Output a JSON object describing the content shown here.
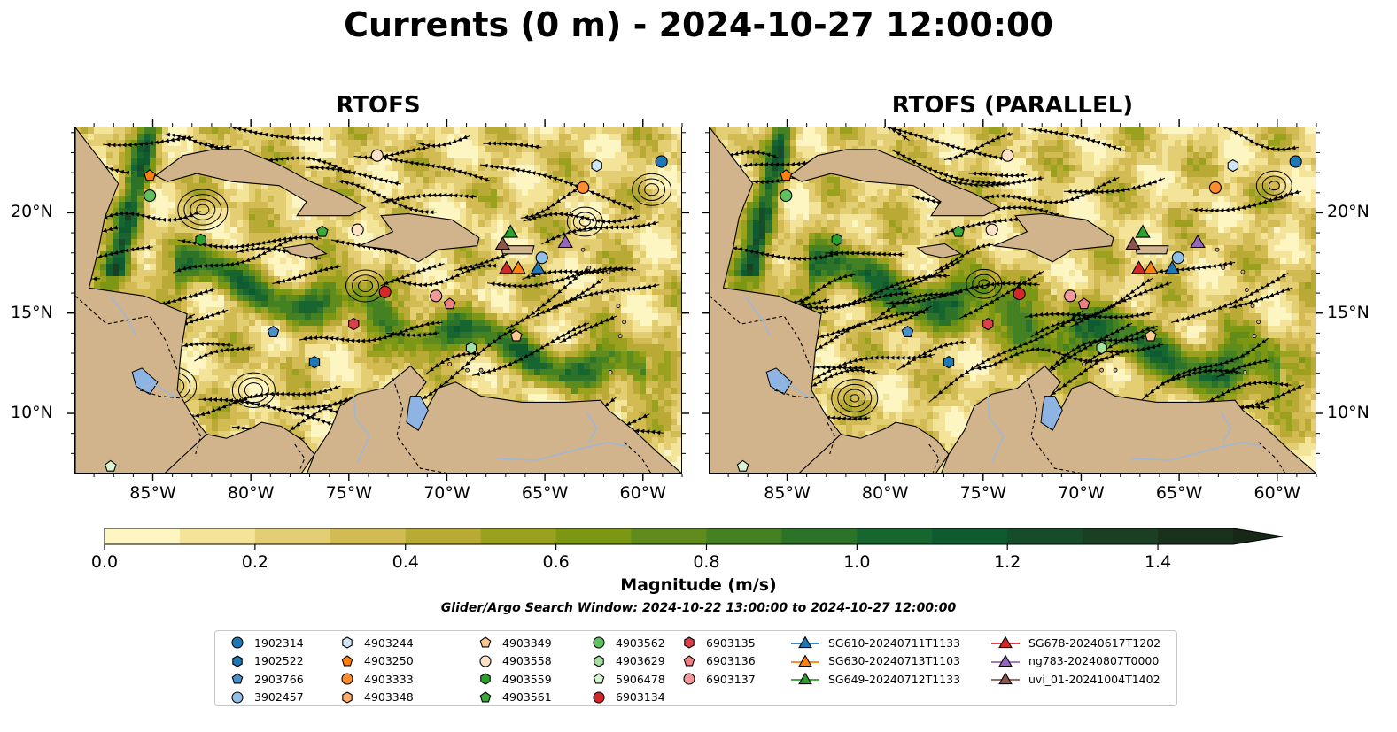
{
  "title": "Currents (0 m) - 2024-10-27 12:00:00",
  "panels": [
    {
      "title": "RTOFS",
      "variant": "a"
    },
    {
      "title": "RTOFS (PARALLEL)",
      "variant": "b"
    }
  ],
  "map_extent": {
    "lon": [
      -89,
      -58
    ],
    "lat": [
      7,
      24.3
    ]
  },
  "lon_ticks": [
    "85°W",
    "80°W",
    "75°W",
    "70°W",
    "65°W",
    "60°W"
  ],
  "lat_ticks": [
    "20°N",
    "15°N",
    "10°N"
  ],
  "colorbar": {
    "label": "Magnitude (m/s)",
    "min": 0.0,
    "max": 1.5,
    "extend": "max",
    "ticks": [
      "0.0",
      "0.2",
      "0.4",
      "0.6",
      "0.8",
      "1.0",
      "1.2",
      "1.4"
    ],
    "colors": [
      "#fdf6c3",
      "#f3e49a",
      "#e3ce73",
      "#d2bb52",
      "#b8aa35",
      "#9aa11e",
      "#7c9714",
      "#5f8c1c",
      "#438123",
      "#2c7229",
      "#17652f",
      "#0f5a2e",
      "#164c2a",
      "#1a3f22",
      "#1a311b",
      "#162816"
    ],
    "land_color": "#d2b48c",
    "lake_color": "#8eb4e3"
  },
  "search_window": "Glider/Argo Search Window: 2024-10-22 13:00:00 to 2024-10-27 12:00:00",
  "legend": {
    "columns": [
      [
        {
          "label": "1902314",
          "marker": "circle",
          "color": "#1f77b4"
        },
        {
          "label": "1902522",
          "marker": "hexagon",
          "color": "#1f77b4"
        },
        {
          "label": "2903766",
          "marker": "pentagon",
          "color": "#4a90c9"
        },
        {
          "label": "3902457",
          "marker": "circle",
          "color": "#8ec0e8"
        }
      ],
      [
        {
          "label": "4903244",
          "marker": "hexagon",
          "color": "#cfe6f7"
        },
        {
          "label": "4903250",
          "marker": "pentagon",
          "color": "#ff7f0e"
        },
        {
          "label": "4903333",
          "marker": "circle",
          "color": "#ff8c2e"
        },
        {
          "label": "4903348",
          "marker": "hexagon",
          "color": "#ffad66"
        }
      ],
      [
        {
          "label": "4903349",
          "marker": "pentagon",
          "color": "#ffc890"
        },
        {
          "label": "4903558",
          "marker": "circle",
          "color": "#fde2c8"
        },
        {
          "label": "4903559",
          "marker": "hexagon",
          "color": "#2ca02c"
        },
        {
          "label": "4903561",
          "marker": "pentagon",
          "color": "#3aab3a"
        }
      ],
      [
        {
          "label": "4903562",
          "marker": "circle",
          "color": "#5fc25f"
        },
        {
          "label": "4903629",
          "marker": "hexagon",
          "color": "#a6e0a0"
        },
        {
          "label": "5906478",
          "marker": "pentagon",
          "color": "#d8f4d0"
        },
        {
          "label": "6903134",
          "marker": "circle",
          "color": "#d62728"
        }
      ],
      [
        {
          "label": "6903135",
          "marker": "hexagon",
          "color": "#d9404a"
        },
        {
          "label": "6903136",
          "marker": "pentagon",
          "color": "#ee7f85"
        },
        {
          "label": "6903137",
          "marker": "circle",
          "color": "#f3999c"
        }
      ],
      [
        {
          "label": "SG610-20240711T1133",
          "marker": "triangle-line",
          "color": "#1f77b4"
        },
        {
          "label": "SG630-20240713T1103",
          "marker": "triangle-line",
          "color": "#ff7f0e"
        },
        {
          "label": "SG649-20240712T1133",
          "marker": "triangle-line",
          "color": "#2ca02c"
        }
      ],
      [
        {
          "label": "SG678-20240617T1202",
          "marker": "triangle-line",
          "color": "#d62728"
        },
        {
          "label": "ng783-20240807T0000",
          "marker": "triangle-line",
          "color": "#9467bd"
        },
        {
          "label": "uvi_01-20241004T1402",
          "marker": "triangle-line",
          "color": "#8c564b"
        }
      ]
    ]
  },
  "platforms_a": [
    {
      "id": "1902314",
      "lon": -59.1,
      "lat": 22.6
    },
    {
      "id": "4903244",
      "lon": -62.4,
      "lat": 22.4
    },
    {
      "id": "4903333",
      "lon": -63.1,
      "lat": 21.3
    },
    {
      "id": "4903558",
      "lon": -73.6,
      "lat": 22.9
    },
    {
      "id": "4903250",
      "lon": -85.2,
      "lat": 21.9
    },
    {
      "id": "4903562",
      "lon": -85.2,
      "lat": 20.9
    },
    {
      "id": "4903559",
      "lon": -82.6,
      "lat": 18.7
    },
    {
      "id": "4903561",
      "lon": -76.4,
      "lat": 19.1
    },
    {
      "id": "4903558",
      "lon": -74.6,
      "lat": 19.2
    },
    {
      "id": "uvi_01-20241004T1402",
      "lon": -67.2,
      "lat": 18.5
    },
    {
      "id": "SG649-20240712T1133",
      "lon": -66.8,
      "lat": 19.1
    },
    {
      "id": "ng783-20240807T0000",
      "lon": -64.0,
      "lat": 18.6
    },
    {
      "id": "SG678-20240617T1202",
      "lon": -67.0,
      "lat": 17.3
    },
    {
      "id": "SG630-20240713T1103",
      "lon": -66.4,
      "lat": 17.3
    },
    {
      "id": "SG610-20240711T1133",
      "lon": -65.4,
      "lat": 17.3
    },
    {
      "id": "3902457",
      "lon": -65.2,
      "lat": 17.8
    },
    {
      "id": "6903134",
      "lon": -73.2,
      "lat": 16.1
    },
    {
      "id": "6903137",
      "lon": -70.6,
      "lat": 15.9
    },
    {
      "id": "6903136",
      "lon": -69.9,
      "lat": 15.5
    },
    {
      "id": "6903135",
      "lon": -74.8,
      "lat": 14.5
    },
    {
      "id": "2903766",
      "lon": -78.9,
      "lat": 14.1
    },
    {
      "id": "4903349",
      "lon": -66.5,
      "lat": 13.9
    },
    {
      "id": "4903629",
      "lon": -68.8,
      "lat": 13.3
    },
    {
      "id": "1902522",
      "lon": -76.8,
      "lat": 12.6
    },
    {
      "id": "5906478",
      "lon": -87.2,
      "lat": 7.4
    }
  ],
  "platforms_b": [
    {
      "id": "1902314",
      "lon": -59.1,
      "lat": 22.6
    },
    {
      "id": "4903244",
      "lon": -62.3,
      "lat": 22.4
    },
    {
      "id": "4903333",
      "lon": -63.2,
      "lat": 21.3
    },
    {
      "id": "4903558",
      "lon": -73.8,
      "lat": 22.9
    },
    {
      "id": "4903250",
      "lon": -85.1,
      "lat": 21.9
    },
    {
      "id": "4903562",
      "lon": -85.1,
      "lat": 20.9
    },
    {
      "id": "4903559",
      "lon": -82.5,
      "lat": 18.7
    },
    {
      "id": "4903561",
      "lon": -76.3,
      "lat": 19.1
    },
    {
      "id": "4903558",
      "lon": -74.6,
      "lat": 19.2
    },
    {
      "id": "uvi_01-20241004T1402",
      "lon": -67.4,
      "lat": 18.5
    },
    {
      "id": "SG649-20240712T1133",
      "lon": -66.9,
      "lat": 19.1
    },
    {
      "id": "ng783-20240807T0000",
      "lon": -64.1,
      "lat": 18.6
    },
    {
      "id": "SG678-20240617T1202",
      "lon": -67.1,
      "lat": 17.3
    },
    {
      "id": "SG630-20240713T1103",
      "lon": -66.5,
      "lat": 17.3
    },
    {
      "id": "SG610-20240711T1133",
      "lon": -65.4,
      "lat": 17.3
    },
    {
      "id": "3902457",
      "lon": -65.1,
      "lat": 17.8
    },
    {
      "id": "6903134",
      "lon": -73.2,
      "lat": 16.0
    },
    {
      "id": "6903137",
      "lon": -70.6,
      "lat": 15.9
    },
    {
      "id": "6903136",
      "lon": -69.9,
      "lat": 15.5
    },
    {
      "id": "6903135",
      "lon": -74.8,
      "lat": 14.5
    },
    {
      "id": "2903766",
      "lon": -78.9,
      "lat": 14.1
    },
    {
      "id": "4903349",
      "lon": -66.5,
      "lat": 13.9
    },
    {
      "id": "4903629",
      "lon": -69.0,
      "lat": 13.3
    },
    {
      "id": "1902522",
      "lon": -76.8,
      "lat": 12.6
    },
    {
      "id": "5906478",
      "lon": -87.3,
      "lat": 7.4
    }
  ]
}
